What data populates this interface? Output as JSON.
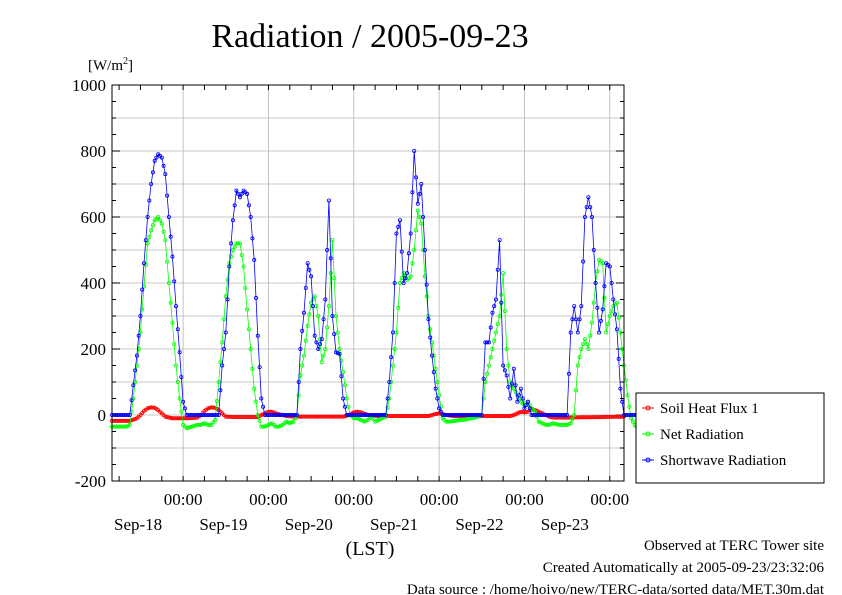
{
  "chart_data": {
    "type": "line",
    "title": "Radiation / 2005-09-23",
    "ylabel": "[W/m2]",
    "ylabel_base": "[W/m",
    "ylabel_sup": "2",
    "ylabel_close": "]",
    "xlabel": "(LST)",
    "ylim": [
      -200,
      1000
    ],
    "xlim": [
      0,
      144
    ],
    "yticks": [
      -200,
      0,
      200,
      400,
      600,
      800,
      1000
    ],
    "ytick_labels": [
      "-200",
      "0",
      "200",
      "400",
      "600",
      "800",
      "1000"
    ],
    "xticks": [
      {
        "x": 20,
        "time": "00:00",
        "date": "Sep-18"
      },
      {
        "x": 44,
        "time": "00:00",
        "date": "Sep-19"
      },
      {
        "x": 68,
        "time": "00:00",
        "date": "Sep-20"
      },
      {
        "x": 92,
        "time": "00:00",
        "date": "Sep-21"
      },
      {
        "x": 116,
        "time": "00:00",
        "date": "Sep-22"
      },
      {
        "x": 140,
        "time": "00:00",
        "date": "Sep-23"
      }
    ],
    "grid": true,
    "legend_position": "right",
    "series": [
      {
        "name": "Soil Heat Flux 1",
        "color": "#ff0000",
        "points": [
          [
            0,
            -18
          ],
          [
            5,
            -18
          ],
          [
            7,
            -10
          ],
          [
            8,
            0
          ],
          [
            9,
            12
          ],
          [
            10,
            20
          ],
          [
            11,
            23
          ],
          [
            12,
            22
          ],
          [
            13,
            15
          ],
          [
            14,
            5
          ],
          [
            15,
            -5
          ],
          [
            17,
            -10
          ],
          [
            21,
            -10
          ],
          [
            24,
            -8
          ],
          [
            25,
            0
          ],
          [
            26,
            12
          ],
          [
            27,
            20
          ],
          [
            28,
            23
          ],
          [
            29,
            22
          ],
          [
            30,
            15
          ],
          [
            31,
            5
          ],
          [
            32,
            -5
          ],
          [
            34,
            -6
          ],
          [
            41,
            -6
          ],
          [
            42,
            0
          ],
          [
            43,
            5
          ],
          [
            44,
            10
          ],
          [
            45,
            10
          ],
          [
            46,
            5
          ],
          [
            47,
            2
          ],
          [
            48,
            0
          ],
          [
            49,
            -3
          ],
          [
            51,
            -5
          ],
          [
            65,
            -5
          ],
          [
            66,
            -2
          ],
          [
            67,
            2
          ],
          [
            68,
            8
          ],
          [
            69,
            10
          ],
          [
            70,
            8
          ],
          [
            71,
            4
          ],
          [
            72,
            0
          ],
          [
            73,
            -2
          ],
          [
            75,
            -3
          ],
          [
            89,
            -3
          ],
          [
            90,
            0
          ],
          [
            91,
            3
          ],
          [
            92,
            5
          ],
          [
            93,
            3
          ],
          [
            94,
            0
          ],
          [
            96,
            -3
          ],
          [
            99,
            -3
          ],
          [
            112,
            -3
          ],
          [
            113,
            0
          ],
          [
            114,
            5
          ],
          [
            115,
            10
          ],
          [
            116,
            8
          ],
          [
            117,
            10
          ],
          [
            118,
            18
          ],
          [
            119,
            15
          ],
          [
            120,
            10
          ],
          [
            121,
            5
          ],
          [
            122,
            0
          ],
          [
            123,
            -5
          ],
          [
            124,
            -8
          ],
          [
            127,
            -8
          ],
          [
            144,
            -5
          ]
        ]
      },
      {
        "name": "Net Radiation",
        "color": "#00ff00",
        "points": [
          [
            0,
            -35
          ],
          [
            4,
            -35
          ],
          [
            5,
            -30
          ],
          [
            6,
            50
          ],
          [
            7,
            150
          ],
          [
            8,
            250
          ],
          [
            9,
            390
          ],
          [
            10,
            520
          ],
          [
            11,
            560
          ],
          [
            12,
            590
          ],
          [
            13,
            600
          ],
          [
            14,
            580
          ],
          [
            15,
            530
          ],
          [
            16,
            400
          ],
          [
            17,
            280
          ],
          [
            18,
            150
          ],
          [
            19,
            50
          ],
          [
            20,
            -30
          ],
          [
            21,
            -40
          ],
          [
            24,
            -30
          ],
          [
            25,
            -30
          ],
          [
            26,
            -25
          ],
          [
            27,
            -30
          ],
          [
            28,
            -30
          ],
          [
            29,
            -15
          ],
          [
            30,
            100
          ],
          [
            31,
            220
          ],
          [
            32,
            360
          ],
          [
            33,
            460
          ],
          [
            34,
            500
          ],
          [
            35,
            520
          ],
          [
            36,
            520
          ],
          [
            37,
            450
          ],
          [
            38,
            320
          ],
          [
            39,
            200
          ],
          [
            40,
            80
          ],
          [
            41,
            0
          ],
          [
            42,
            -35
          ],
          [
            43,
            -35
          ],
          [
            44,
            -30
          ],
          [
            45,
            -25
          ],
          [
            46,
            -35
          ],
          [
            47,
            -35
          ],
          [
            48,
            -30
          ],
          [
            49,
            -20
          ],
          [
            50,
            -25
          ],
          [
            51,
            -20
          ],
          [
            52,
            0
          ],
          [
            53,
            120
          ],
          [
            54,
            180
          ],
          [
            55,
            270
          ],
          [
            56,
            340
          ],
          [
            57,
            360
          ],
          [
            58,
            300
          ],
          [
            59,
            160
          ],
          [
            60,
            200
          ],
          [
            61,
            330
          ],
          [
            62,
            530
          ],
          [
            63,
            300
          ],
          [
            64,
            200
          ],
          [
            65,
            130
          ],
          [
            66,
            50
          ],
          [
            67,
            0
          ],
          [
            68,
            -10
          ],
          [
            69,
            -10
          ],
          [
            70,
            -15
          ],
          [
            71,
            -20
          ],
          [
            72,
            -15
          ],
          [
            73,
            -5
          ],
          [
            74,
            -20
          ],
          [
            75,
            -15
          ],
          [
            76,
            -10
          ],
          [
            77,
            -5
          ],
          [
            78,
            50
          ],
          [
            79,
            150
          ],
          [
            80,
            250
          ],
          [
            81,
            400
          ],
          [
            82,
            430
          ],
          [
            83,
            410
          ],
          [
            84,
            420
          ],
          [
            85,
            500
          ],
          [
            86,
            620
          ],
          [
            87,
            580
          ],
          [
            88,
            420
          ],
          [
            89,
            300
          ],
          [
            90,
            220
          ],
          [
            91,
            140
          ],
          [
            92,
            60
          ],
          [
            93,
            -10
          ],
          [
            94,
            -20
          ],
          [
            95,
            -20
          ],
          [
            98,
            -15
          ],
          [
            99,
            -15
          ],
          [
            100,
            -12
          ],
          [
            102,
            -8
          ],
          [
            103,
            -5
          ],
          [
            104,
            0
          ],
          [
            105,
            100
          ],
          [
            106,
            150
          ],
          [
            107,
            200
          ],
          [
            108,
            250
          ],
          [
            109,
            300
          ],
          [
            110,
            430
          ],
          [
            111,
            200
          ],
          [
            112,
            100
          ],
          [
            113,
            80
          ],
          [
            114,
            60
          ],
          [
            115,
            40
          ],
          [
            116,
            30
          ],
          [
            117,
            40
          ],
          [
            118,
            20
          ],
          [
            119,
            10
          ],
          [
            120,
            -20
          ],
          [
            121,
            -25
          ],
          [
            122,
            -30
          ],
          [
            123,
            -30
          ],
          [
            124,
            -25
          ],
          [
            125,
            -28
          ],
          [
            126,
            -30
          ],
          [
            127,
            -30
          ],
          [
            128,
            -30
          ],
          [
            129,
            -25
          ],
          [
            130,
            0
          ],
          [
            131,
            150
          ],
          [
            132,
            200
          ],
          [
            133,
            230
          ],
          [
            134,
            200
          ],
          [
            135,
            280
          ],
          [
            136,
            400
          ],
          [
            137,
            470
          ],
          [
            138,
            460
          ],
          [
            139,
            250
          ],
          [
            140,
            300
          ],
          [
            141,
            330
          ],
          [
            142,
            340
          ],
          [
            143,
            250
          ],
          [
            144,
            150
          ],
          [
            145,
            60
          ],
          [
            146,
            -10
          ],
          [
            147,
            -30
          ],
          [
            148,
            -40
          ],
          [
            149,
            -20
          ]
        ]
      },
      {
        "name": "Shortwave Radiation",
        "color": "#0000ff",
        "points": [
          [
            0,
            0
          ],
          [
            5,
            0
          ],
          [
            6,
            90
          ],
          [
            7,
            180
          ],
          [
            8,
            300
          ],
          [
            9,
            460
          ],
          [
            10,
            600
          ],
          [
            11,
            700
          ],
          [
            12,
            770
          ],
          [
            13,
            790
          ],
          [
            14,
            780
          ],
          [
            15,
            730
          ],
          [
            16,
            600
          ],
          [
            17,
            480
          ],
          [
            18,
            330
          ],
          [
            19,
            190
          ],
          [
            20,
            40
          ],
          [
            21,
            0
          ],
          [
            30,
            0
          ],
          [
            31,
            150
          ],
          [
            32,
            250
          ],
          [
            33,
            450
          ],
          [
            34,
            590
          ],
          [
            35,
            680
          ],
          [
            36,
            660
          ],
          [
            37,
            680
          ],
          [
            38,
            670
          ],
          [
            39,
            600
          ],
          [
            40,
            470
          ],
          [
            41,
            240
          ],
          [
            42,
            50
          ],
          [
            43,
            0
          ],
          [
            52,
            0
          ],
          [
            53,
            200
          ],
          [
            54,
            310
          ],
          [
            55,
            460
          ],
          [
            56,
            420
          ],
          [
            57,
            240
          ],
          [
            58,
            200
          ],
          [
            59,
            230
          ],
          [
            60,
            350
          ],
          [
            61,
            650
          ],
          [
            62,
            300
          ],
          [
            63,
            190
          ],
          [
            64,
            185
          ],
          [
            65,
            50
          ],
          [
            66,
            0
          ],
          [
            77,
            0
          ],
          [
            78,
            100
          ],
          [
            79,
            250
          ],
          [
            80,
            550
          ],
          [
            81,
            590
          ],
          [
            82,
            400
          ],
          [
            83,
            430
          ],
          [
            84,
            550
          ],
          [
            85,
            800
          ],
          [
            86,
            640
          ],
          [
            87,
            700
          ],
          [
            88,
            500
          ],
          [
            89,
            290
          ],
          [
            90,
            180
          ],
          [
            91,
            80
          ],
          [
            92,
            20
          ],
          [
            93,
            0
          ],
          [
            104,
            0
          ],
          [
            105,
            220
          ],
          [
            106,
            220
          ],
          [
            107,
            310
          ],
          [
            108,
            350
          ],
          [
            109,
            530
          ],
          [
            110,
            150
          ],
          [
            111,
            120
          ],
          [
            112,
            50
          ],
          [
            113,
            140
          ],
          [
            114,
            40
          ],
          [
            115,
            80
          ],
          [
            116,
            20
          ],
          [
            117,
            40
          ],
          [
            118,
            0
          ],
          [
            128,
            0
          ],
          [
            129,
            250
          ],
          [
            130,
            330
          ],
          [
            131,
            250
          ],
          [
            132,
            330
          ],
          [
            133,
            600
          ],
          [
            134,
            660
          ],
          [
            135,
            600
          ],
          [
            136,
            400
          ],
          [
            137,
            250
          ],
          [
            138,
            320
          ],
          [
            139,
            460
          ],
          [
            140,
            450
          ],
          [
            141,
            350
          ],
          [
            142,
            260
          ],
          [
            143,
            80
          ],
          [
            144,
            0
          ],
          [
            149,
            0
          ]
        ]
      }
    ]
  },
  "footer": {
    "observed": "Observed at TERC Tower site",
    "created": "Created Automatically at 2005-09-23/23:32:06",
    "source": "Data source : /home/hoivo/new/TERC-data/sorted  data/MET.30m.dat"
  }
}
